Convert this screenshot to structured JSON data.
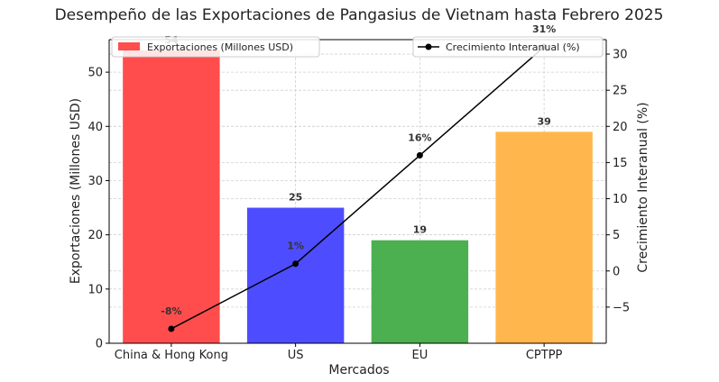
{
  "chart_data": {
    "type": "bar",
    "title": "Desempeño de las Exportaciones de Pangasius de Vietnam hasta Febrero 2025",
    "xlabel": "Mercados",
    "ylabel": "Exportaciones (Millones USD)",
    "y2label": "Crecimiento Interanual (%)",
    "categories": [
      "China & Hong Kong",
      "US",
      "EU",
      "CPTPP"
    ],
    "ylim": [
      0,
      56
    ],
    "y2lim": [
      -10,
      32
    ],
    "yticks": [
      "0",
      "10",
      "20",
      "30",
      "40",
      "50"
    ],
    "y2ticks": [
      "−5",
      "0",
      "5",
      "10",
      "15",
      "20",
      "25",
      "30"
    ],
    "grid": true,
    "series": [
      {
        "name": "Exportaciones (Millones USD)",
        "type": "bar",
        "axis": "left",
        "values": [
          54,
          25,
          19,
          39
        ],
        "labels": [
          "54",
          "25",
          "19",
          "39"
        ],
        "colors": [
          "#ff4d4d",
          "#4d4dff",
          "#4caf50",
          "#ffb74d"
        ]
      },
      {
        "name": "Crecimiento Interanual (%)",
        "type": "line",
        "axis": "right",
        "values": [
          -8,
          1,
          16,
          31
        ],
        "labels": [
          "-8%",
          "1%",
          "16%",
          "31%"
        ],
        "color": "#000000"
      }
    ],
    "legend": [
      "upper-left",
      "upper-right"
    ]
  }
}
